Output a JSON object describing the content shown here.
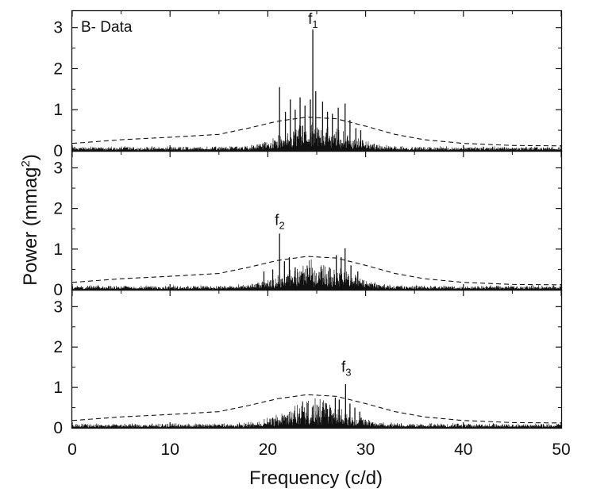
{
  "chart_data": {
    "type": "line",
    "panel_label": "B- Data",
    "xlabel": "Frequency (c/d)",
    "ylabel_main": "Power (mmag",
    "ylabel_sup": "2",
    "ylabel_close": ")",
    "xlim": [
      0,
      50
    ],
    "ylim": [
      0,
      3.4
    ],
    "xticks": [
      0,
      10,
      20,
      30,
      40,
      50
    ],
    "yticks": [
      0,
      1,
      2,
      3
    ],
    "xtick_labels": [
      "0",
      "10",
      "20",
      "30",
      "40",
      "50"
    ],
    "ytick_labels": [
      "0",
      "1",
      "2",
      "3"
    ],
    "significance_line": {
      "name": "significance threshold",
      "style": "dashed",
      "x": [
        0,
        5,
        10,
        15,
        18,
        21,
        24,
        27,
        30,
        33,
        36,
        40,
        45,
        50
      ],
      "y": [
        0.18,
        0.27,
        0.33,
        0.4,
        0.55,
        0.72,
        0.82,
        0.78,
        0.6,
        0.4,
        0.27,
        0.18,
        0.13,
        0.12
      ]
    },
    "panels": [
      {
        "name": "panel-1",
        "noise_floor": 0.05,
        "peak_label": {
          "main": "f",
          "sub": "1",
          "x": 24.6,
          "y": 3.05
        },
        "peaks": [
          {
            "x": 21.2,
            "y": 1.55
          },
          {
            "x": 21.8,
            "y": 0.95
          },
          {
            "x": 22.3,
            "y": 1.25
          },
          {
            "x": 22.8,
            "y": 1.0
          },
          {
            "x": 23.3,
            "y": 1.3
          },
          {
            "x": 23.8,
            "y": 1.1
          },
          {
            "x": 24.35,
            "y": 1.25
          },
          {
            "x": 24.6,
            "y": 2.95
          },
          {
            "x": 24.9,
            "y": 1.45
          },
          {
            "x": 25.6,
            "y": 1.2
          },
          {
            "x": 26.1,
            "y": 0.95
          },
          {
            "x": 26.6,
            "y": 0.9
          },
          {
            "x": 27.2,
            "y": 1.05
          },
          {
            "x": 27.9,
            "y": 1.15
          },
          {
            "x": 28.4,
            "y": 0.75
          },
          {
            "x": 29.0,
            "y": 0.55
          },
          {
            "x": 29.5,
            "y": 0.5
          }
        ]
      },
      {
        "name": "panel-2",
        "noise_floor": 0.05,
        "peak_label": {
          "main": "f",
          "sub": "2",
          "x": 21.2,
          "y": 1.55
        },
        "peaks": [
          {
            "x": 19.6,
            "y": 0.45
          },
          {
            "x": 20.5,
            "y": 0.5
          },
          {
            "x": 21.2,
            "y": 1.38
          },
          {
            "x": 21.7,
            "y": 0.7
          },
          {
            "x": 22.2,
            "y": 0.8
          },
          {
            "x": 22.8,
            "y": 0.55
          },
          {
            "x": 23.5,
            "y": 0.4
          },
          {
            "x": 24.5,
            "y": 0.35
          },
          {
            "x": 25.5,
            "y": 0.45
          },
          {
            "x": 26.3,
            "y": 0.55
          },
          {
            "x": 27.0,
            "y": 0.85
          },
          {
            "x": 27.5,
            "y": 0.8
          },
          {
            "x": 27.9,
            "y": 1.02
          },
          {
            "x": 28.5,
            "y": 0.6
          },
          {
            "x": 29.2,
            "y": 0.45
          }
        ]
      },
      {
        "name": "panel-3",
        "noise_floor": 0.05,
        "peak_label": {
          "main": "f",
          "sub": "3",
          "x": 28.0,
          "y": 1.35
        },
        "peaks": [
          {
            "x": 20.5,
            "y": 0.25
          },
          {
            "x": 22.0,
            "y": 0.3
          },
          {
            "x": 23.5,
            "y": 0.28
          },
          {
            "x": 25.0,
            "y": 0.32
          },
          {
            "x": 25.8,
            "y": 0.45
          },
          {
            "x": 26.4,
            "y": 0.5
          },
          {
            "x": 26.9,
            "y": 0.75
          },
          {
            "x": 27.3,
            "y": 0.7
          },
          {
            "x": 27.95,
            "y": 1.08
          },
          {
            "x": 28.4,
            "y": 0.6
          },
          {
            "x": 28.9,
            "y": 0.5
          },
          {
            "x": 29.4,
            "y": 0.4
          }
        ]
      }
    ]
  }
}
